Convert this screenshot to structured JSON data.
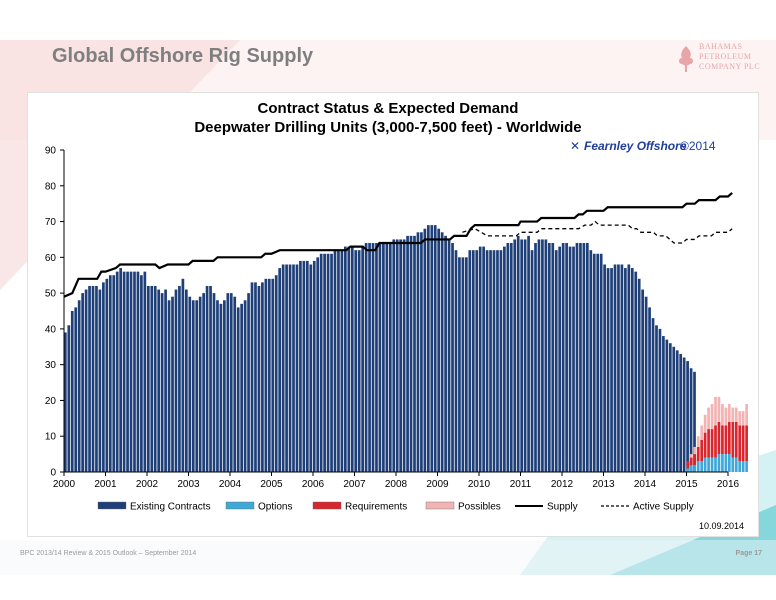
{
  "slide": {
    "title": "Global Offshore Rig Supply",
    "logo_lines": [
      "BAHAMAS",
      "PETROLEUM",
      "COMPANY PLC"
    ],
    "footer_left": "BPC 2013/14 Review & 2015 Outlook – September 2014",
    "footer_right": "Page 17"
  },
  "colors": {
    "existing": "#1f3f78",
    "options": "#3fa8d8",
    "requirements": "#d9262e",
    "possibles": "#f2b3b3",
    "supply": "#000000",
    "title_gray": "#7f7f7f",
    "teal": "#5ec8d0",
    "pink": "#f7d6d6"
  },
  "chart_data": {
    "type": "bar",
    "title": "Contract Status & Expected Demand",
    "subtitle": "Deepwater Drilling Units (3,000-7,500 feet) - Worldwide",
    "brand": "Fearnley Offshore",
    "brand_year": "©2014",
    "date_stamp": "10.09.2014",
    "ylim": [
      0,
      90
    ],
    "yticks": [
      0,
      10,
      20,
      30,
      40,
      50,
      60,
      70,
      80,
      90
    ],
    "xlim": [
      2000,
      2016
    ],
    "xticks": [
      "2000",
      "2001",
      "2002",
      "2003",
      "2004",
      "2005",
      "2006",
      "2007",
      "2008",
      "2009",
      "2010",
      "2011",
      "2012",
      "2013",
      "2014",
      "2015",
      "2016"
    ],
    "legend": [
      "Existing Contracts",
      "Options",
      "Requirements",
      "Possibles",
      "Supply",
      "Active Supply"
    ],
    "legend_position": "bottom",
    "grid": false,
    "stacked": true,
    "bar_step": 0.0833,
    "series": [
      {
        "name": "Existing Contracts",
        "start": 2000.0,
        "values": [
          39,
          41,
          45,
          46,
          48,
          50,
          51,
          52,
          52,
          52,
          51,
          53,
          54,
          55,
          55,
          56,
          57,
          56,
          56,
          56,
          56,
          56,
          55,
          56,
          52,
          52,
          52,
          51,
          50,
          51,
          48,
          49,
          51,
          52,
          54,
          51,
          49,
          48,
          48,
          49,
          50,
          52,
          52,
          50,
          48,
          47,
          48,
          50,
          50,
          49,
          46,
          47,
          48,
          50,
          53,
          53,
          52,
          53,
          54,
          54,
          54,
          55,
          57,
          58,
          58,
          58,
          58,
          58,
          59,
          59,
          59,
          58,
          59,
          60,
          61,
          61,
          61,
          61,
          62,
          62,
          62,
          63,
          63,
          63,
          62,
          62,
          63,
          64,
          64,
          64,
          64,
          64,
          64,
          64,
          64,
          65,
          65,
          65,
          65,
          66,
          66,
          66,
          67,
          67,
          68,
          69,
          69,
          69,
          68,
          67,
          66,
          65,
          64,
          62,
          60,
          60,
          60,
          62,
          62,
          62,
          63,
          63,
          62,
          62,
          62,
          62,
          62,
          63,
          64,
          64,
          65,
          66,
          65,
          65,
          66,
          62,
          64,
          65,
          65,
          65,
          64,
          64,
          62,
          63,
          64,
          64,
          63,
          63,
          64,
          64,
          64,
          64,
          62,
          61,
          61,
          61,
          58,
          57,
          57,
          58,
          58,
          58,
          57,
          58,
          57,
          56,
          54,
          51,
          49,
          46,
          43,
          41,
          40,
          38,
          37,
          36,
          35,
          34,
          33,
          32,
          31,
          29,
          28
        ]
      },
      {
        "name": "Options",
        "start": 2015.0,
        "values": [
          1,
          2,
          2,
          3,
          3,
          4,
          4,
          4,
          4,
          5,
          5,
          5,
          5,
          4,
          4,
          3,
          3,
          3
        ]
      },
      {
        "name": "Requirements",
        "start": 2015.0,
        "values": [
          2,
          2,
          3,
          4,
          6,
          7,
          8,
          8,
          9,
          9,
          8,
          8,
          9,
          10,
          10,
          10,
          10,
          10
        ]
      },
      {
        "name": "Possibles",
        "start": 2015.0,
        "values": [
          0,
          1,
          2,
          3,
          4,
          5,
          6,
          7,
          8,
          7,
          6,
          5,
          5,
          4,
          4,
          4,
          4,
          6
        ]
      },
      {
        "name": "Supply",
        "type": "line",
        "points": [
          [
            2000,
            49
          ],
          [
            2000.2,
            50
          ],
          [
            2000.35,
            54
          ],
          [
            2000.8,
            54
          ],
          [
            2000.9,
            56
          ],
          [
            2001.0,
            56
          ],
          [
            2001.25,
            57
          ],
          [
            2001.35,
            58
          ],
          [
            2002.2,
            58
          ],
          [
            2002.3,
            57
          ],
          [
            2002.5,
            58
          ],
          [
            2003.0,
            58
          ],
          [
            2003.1,
            59
          ],
          [
            2003.6,
            59
          ],
          [
            2003.7,
            60
          ],
          [
            2004.75,
            60
          ],
          [
            2004.85,
            61
          ],
          [
            2005.0,
            61
          ],
          [
            2005.2,
            62
          ],
          [
            2006.8,
            62
          ],
          [
            2006.9,
            63
          ],
          [
            2007.2,
            63
          ],
          [
            2007.3,
            62
          ],
          [
            2007.5,
            62
          ],
          [
            2007.6,
            64
          ],
          [
            2008.6,
            64
          ],
          [
            2008.7,
            65
          ],
          [
            2009.3,
            65
          ],
          [
            2009.4,
            66
          ],
          [
            2009.7,
            66
          ],
          [
            2009.8,
            68
          ],
          [
            2009.9,
            69
          ],
          [
            2010.0,
            69
          ],
          [
            2010.95,
            69
          ],
          [
            2011.0,
            70
          ],
          [
            2011.4,
            70
          ],
          [
            2011.5,
            71
          ],
          [
            2012.3,
            71
          ],
          [
            2012.4,
            72
          ],
          [
            2012.5,
            72
          ],
          [
            2012.6,
            73
          ],
          [
            2013.0,
            73
          ],
          [
            2013.1,
            74
          ],
          [
            2014.9,
            74
          ],
          [
            2015.0,
            75
          ],
          [
            2015.2,
            75
          ],
          [
            2015.3,
            76
          ],
          [
            2015.7,
            76
          ],
          [
            2015.8,
            77
          ],
          [
            2016.0,
            77
          ],
          [
            2016.1,
            78
          ]
        ]
      },
      {
        "name": "Active Supply",
        "type": "line",
        "dashed": true,
        "points": [
          [
            2009.6,
            67
          ],
          [
            2009.9,
            68
          ],
          [
            2010.05,
            67
          ],
          [
            2010.2,
            66
          ],
          [
            2010.9,
            66
          ],
          [
            2011.0,
            67
          ],
          [
            2011.4,
            67
          ],
          [
            2011.5,
            68
          ],
          [
            2012.4,
            68
          ],
          [
            2012.55,
            69
          ],
          [
            2012.7,
            69
          ],
          [
            2012.8,
            70
          ],
          [
            2012.9,
            69
          ],
          [
            2013.6,
            69
          ],
          [
            2013.7,
            68
          ],
          [
            2013.8,
            68
          ],
          [
            2013.9,
            67
          ],
          [
            2014.2,
            67
          ],
          [
            2014.3,
            66
          ],
          [
            2014.5,
            66
          ],
          [
            2014.6,
            65
          ],
          [
            2014.7,
            64
          ],
          [
            2014.9,
            64
          ],
          [
            2015.0,
            65
          ],
          [
            2015.2,
            65
          ],
          [
            2015.3,
            66
          ],
          [
            2015.6,
            66
          ],
          [
            2015.7,
            67
          ],
          [
            2016.0,
            67
          ],
          [
            2016.1,
            68
          ]
        ]
      }
    ]
  }
}
